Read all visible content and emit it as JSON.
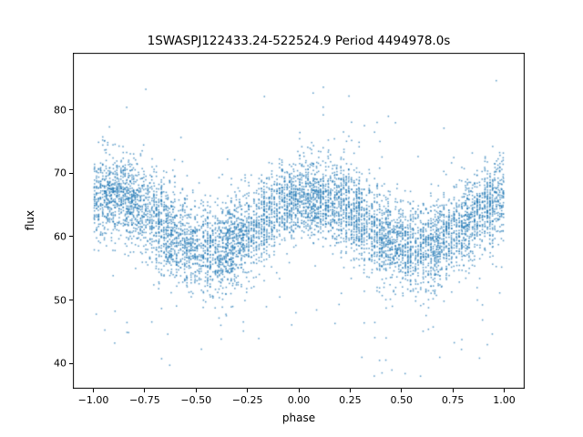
{
  "chart_data": {
    "type": "scatter",
    "title": "1SWASPJ122433.24-522524.9 Period 4494978.0s",
    "xlabel": "phase",
    "ylabel": "flux",
    "xlim": [
      -1.1,
      1.1
    ],
    "ylim": [
      36,
      89
    ],
    "grid": false,
    "legend": null,
    "xticks": [
      -1.0,
      -0.75,
      -0.5,
      -0.25,
      0.0,
      0.25,
      0.5,
      0.75,
      1.0
    ],
    "xtick_labels": [
      "−1.00",
      "−0.75",
      "−0.50",
      "−0.25",
      "0.00",
      "0.25",
      "0.50",
      "0.75",
      "1.00"
    ],
    "yticks": [
      40,
      50,
      60,
      70,
      80
    ],
    "ytick_labels": [
      "40",
      "50",
      "60",
      "70",
      "80"
    ],
    "marker": {
      "color": "#1f77b4",
      "alpha": 0.75,
      "size": 1.5
    },
    "series_description": "Folded light curve plotted over two phase cycles (-1 to 1); sinusoidal variation with maximum flux ~66 near phase 0.05 and minimum ~58 near phase 0.55/-0.45; vertical striping from discrete observation phases; scatter ~3.5 flux units with rare outliers down to ~38 and up to ~86",
    "bins": {
      "phase": [
        -0.975,
        -0.925,
        -0.875,
        -0.825,
        -0.775,
        -0.725,
        -0.675,
        -0.625,
        -0.575,
        -0.525,
        -0.475,
        -0.425,
        -0.375,
        -0.325,
        -0.275,
        -0.225,
        -0.175,
        -0.125,
        -0.075,
        -0.025,
        0.025,
        0.075,
        0.125,
        0.175,
        0.225,
        0.275,
        0.325,
        0.375,
        0.425,
        0.475,
        0.525,
        0.575,
        0.625,
        0.675,
        0.725,
        0.775,
        0.825,
        0.875,
        0.925,
        0.975
      ],
      "mean": [
        66.3,
        66.5,
        66.2,
        65.6,
        64.7,
        63.5,
        62.2,
        60.9,
        59.8,
        58.8,
        58.3,
        58.1,
        58.3,
        59.0,
        59.9,
        61.1,
        62.4,
        63.7,
        64.8,
        65.8,
        66.3,
        66.5,
        66.2,
        65.6,
        64.7,
        63.5,
        62.2,
        60.9,
        59.8,
        58.8,
        58.3,
        58.1,
        58.3,
        59.0,
        59.9,
        61.1,
        62.4,
        63.7,
        64.8,
        65.8
      ],
      "std": [
        3.3,
        3.4,
        3.2,
        3.3,
        3.5,
        3.6,
        3.6,
        3.7,
        3.6,
        3.5,
        3.4,
        3.5,
        3.6,
        3.5,
        3.4,
        3.3,
        3.4,
        3.3,
        3.2,
        3.3,
        3.3,
        3.4,
        3.2,
        3.3,
        3.5,
        3.6,
        3.6,
        3.7,
        3.6,
        3.5,
        3.4,
        3.5,
        3.6,
        3.5,
        3.4,
        3.3,
        3.4,
        3.3,
        3.2,
        3.3
      ],
      "n": [
        150,
        195,
        175,
        210,
        160,
        140,
        185,
        205,
        150,
        170,
        130,
        165,
        190,
        220,
        180,
        150,
        175,
        145,
        160,
        185,
        170,
        200,
        180,
        160,
        190,
        210,
        150,
        175,
        205,
        160,
        185,
        140,
        165,
        190,
        170,
        150,
        180,
        160,
        195,
        150
      ]
    },
    "render": {
      "seed": 42,
      "bin_width": 0.05,
      "jitter": 0.003,
      "low_outlier_frac": 0.012,
      "high_outlier_frac": 0.005,
      "clamp": [
        37.5,
        87.0
      ]
    }
  }
}
